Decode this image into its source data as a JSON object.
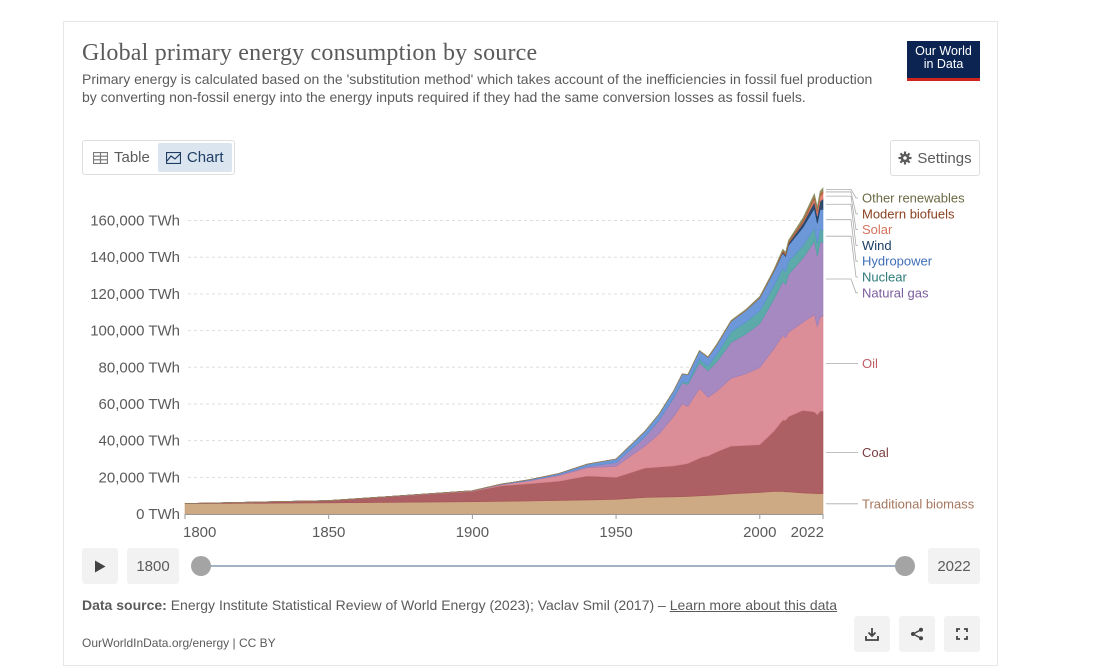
{
  "header": {
    "title": "Global primary energy consumption by source",
    "subtitle": "Primary energy is calculated based on the 'substitution method' which takes account of the inefficiencies in fossil fuel production by converting non-fossil energy into the energy inputs required if they had the same conversion losses as fossil fuels.",
    "logo_line1": "Our World",
    "logo_line2": "in Data"
  },
  "tabs": [
    {
      "label": "Table",
      "active": false
    },
    {
      "label": "Chart",
      "active": true
    }
  ],
  "settings_label": "Settings",
  "timeline": {
    "start_year": "1800",
    "end_year": "2022",
    "play_icon": "play-icon"
  },
  "footer": {
    "source_prefix": "Data source:",
    "source_text": "Energy Institute Statistical Review of World Energy (2023); Vaclav Smil (2017) – ",
    "source_link": "Learn more about this data",
    "credit": "OurWorldInData.org/energy | CC BY"
  },
  "chart_data": {
    "type": "area",
    "stacked": true,
    "title": "Global primary energy consumption by source",
    "x": [
      1800,
      1850,
      1900,
      1910,
      1920,
      1930,
      1940,
      1950,
      1960,
      1965,
      1970,
      1973,
      1975,
      1979,
      1980,
      1982,
      1985,
      1990,
      1995,
      2000,
      2005,
      2008,
      2009,
      2010,
      2015,
      2019,
      2020,
      2021,
      2022
    ],
    "ylim": [
      0,
      175000
    ],
    "y_ticks": [
      "0 TWh",
      "20,000 TWh",
      "40,000 TWh",
      "60,000 TWh",
      "80,000 TWh",
      "100,000 TWh",
      "120,000 TWh",
      "140,000 TWh",
      "160,000 TWh"
    ],
    "y_tick_values": [
      0,
      20000,
      40000,
      60000,
      80000,
      100000,
      120000,
      140000,
      160000
    ],
    "x_ticks": [
      "1800",
      "1850",
      "1900",
      "1950",
      "2000",
      "2022"
    ],
    "x_tick_values": [
      1800,
      1850,
      1900,
      1950,
      2000,
      2022
    ],
    "grid": "horizontal dashed",
    "legend_placement": "right, labels at series ends",
    "series": [
      {
        "name": "Traditional biomass",
        "color": "#c9a27a",
        "label_color": "#a4775e",
        "values": [
          5600,
          6100,
          6700,
          6900,
          7100,
          7400,
          7700,
          8000,
          9000,
          9200,
          9400,
          9500,
          9600,
          9900,
          10000,
          10100,
          10400,
          11000,
          11400,
          11800,
          12300,
          12300,
          12100,
          12100,
          11500,
          11200,
          11100,
          11100,
          11100
        ]
      },
      {
        "name": "Coal",
        "color": "#a65257",
        "label_color": "#7b3e41",
        "values": [
          100,
          1200,
          5700,
          8500,
          9500,
          10500,
          13000,
          12000,
          16000,
          16500,
          16800,
          17500,
          18000,
          20500,
          21000,
          21500,
          23500,
          26000,
          26000,
          26000,
          33000,
          39000,
          39000,
          41000,
          45000,
          44500,
          43000,
          45000,
          45000
        ]
      },
      {
        "name": "Oil",
        "color": "#d8848f",
        "label_color": "#c05e66",
        "values": [
          0,
          0,
          200,
          500,
          1500,
          3000,
          4500,
          6000,
          12000,
          18000,
          27000,
          33000,
          31000,
          38000,
          36000,
          32000,
          33000,
          37000,
          39000,
          42000,
          45000,
          46000,
          45000,
          46000,
          48000,
          53000,
          48000,
          51000,
          52000
        ]
      },
      {
        "name": "Natural gas",
        "color": "#9d7fbb",
        "label_color": "#7b5d9d",
        "values": [
          0,
          0,
          100,
          200,
          300,
          500,
          800,
          2000,
          5000,
          7500,
          10000,
          11500,
          12000,
          14000,
          14000,
          14500,
          16000,
          19500,
          21500,
          24000,
          27000,
          29500,
          29000,
          31500,
          35000,
          40000,
          38500,
          41000,
          40000
        ]
      },
      {
        "name": "Nuclear",
        "color": "#4fa3a3",
        "label_color": "#2e7a7a",
        "values": [
          0,
          0,
          0,
          0,
          0,
          0,
          0,
          0,
          10,
          100,
          200,
          700,
          1100,
          2000,
          2100,
          2500,
          4100,
          5800,
          6500,
          7000,
          7200,
          7100,
          6900,
          7100,
          6700,
          7200,
          6800,
          7000,
          6700
        ]
      },
      {
        "name": "Hydropower",
        "color": "#5f8fd6",
        "label_color": "#3f6fb6",
        "values": [
          0,
          0,
          0,
          200,
          400,
          700,
          1200,
          2000,
          3000,
          3300,
          3700,
          4100,
          4300,
          4600,
          4700,
          4800,
          5100,
          5700,
          6300,
          7000,
          7800,
          8400,
          8400,
          8800,
          10000,
          10800,
          11100,
          11000,
          11300
        ]
      },
      {
        "name": "Wind",
        "color": "#1d3d63",
        "label_color": "#1d3d63",
        "values": [
          0,
          0,
          0,
          0,
          0,
          0,
          0,
          0,
          0,
          0,
          0,
          0,
          0,
          0,
          0,
          0,
          0,
          10,
          20,
          80,
          250,
          520,
          700,
          900,
          2200,
          3500,
          4000,
          4500,
          5500
        ]
      },
      {
        "name": "Solar",
        "color": "#df7a68",
        "label_color": "#d3735e",
        "values": [
          0,
          0,
          0,
          0,
          0,
          0,
          0,
          0,
          0,
          0,
          0,
          0,
          0,
          0,
          0,
          0,
          0,
          0,
          0,
          5,
          10,
          30,
          50,
          90,
          700,
          1800,
          2200,
          2700,
          3400
        ]
      },
      {
        "name": "Modern biofuels",
        "color": "#b4572c",
        "label_color": "#8c4120",
        "values": [
          0,
          0,
          0,
          0,
          0,
          0,
          0,
          0,
          0,
          0,
          0,
          0,
          0,
          50,
          60,
          100,
          150,
          160,
          170,
          180,
          300,
          700,
          750,
          850,
          1000,
          1100,
          1050,
          1100,
          1150
        ]
      },
      {
        "name": "Other renewables",
        "color": "#8c8b5e",
        "label_color": "#6b6a44",
        "values": [
          0,
          0,
          0,
          0,
          0,
          0,
          0,
          0,
          50,
          60,
          80,
          100,
          110,
          150,
          160,
          180,
          300,
          400,
          450,
          550,
          700,
          800,
          800,
          850,
          1200,
          1500,
          1550,
          1600,
          1650
        ]
      }
    ]
  }
}
